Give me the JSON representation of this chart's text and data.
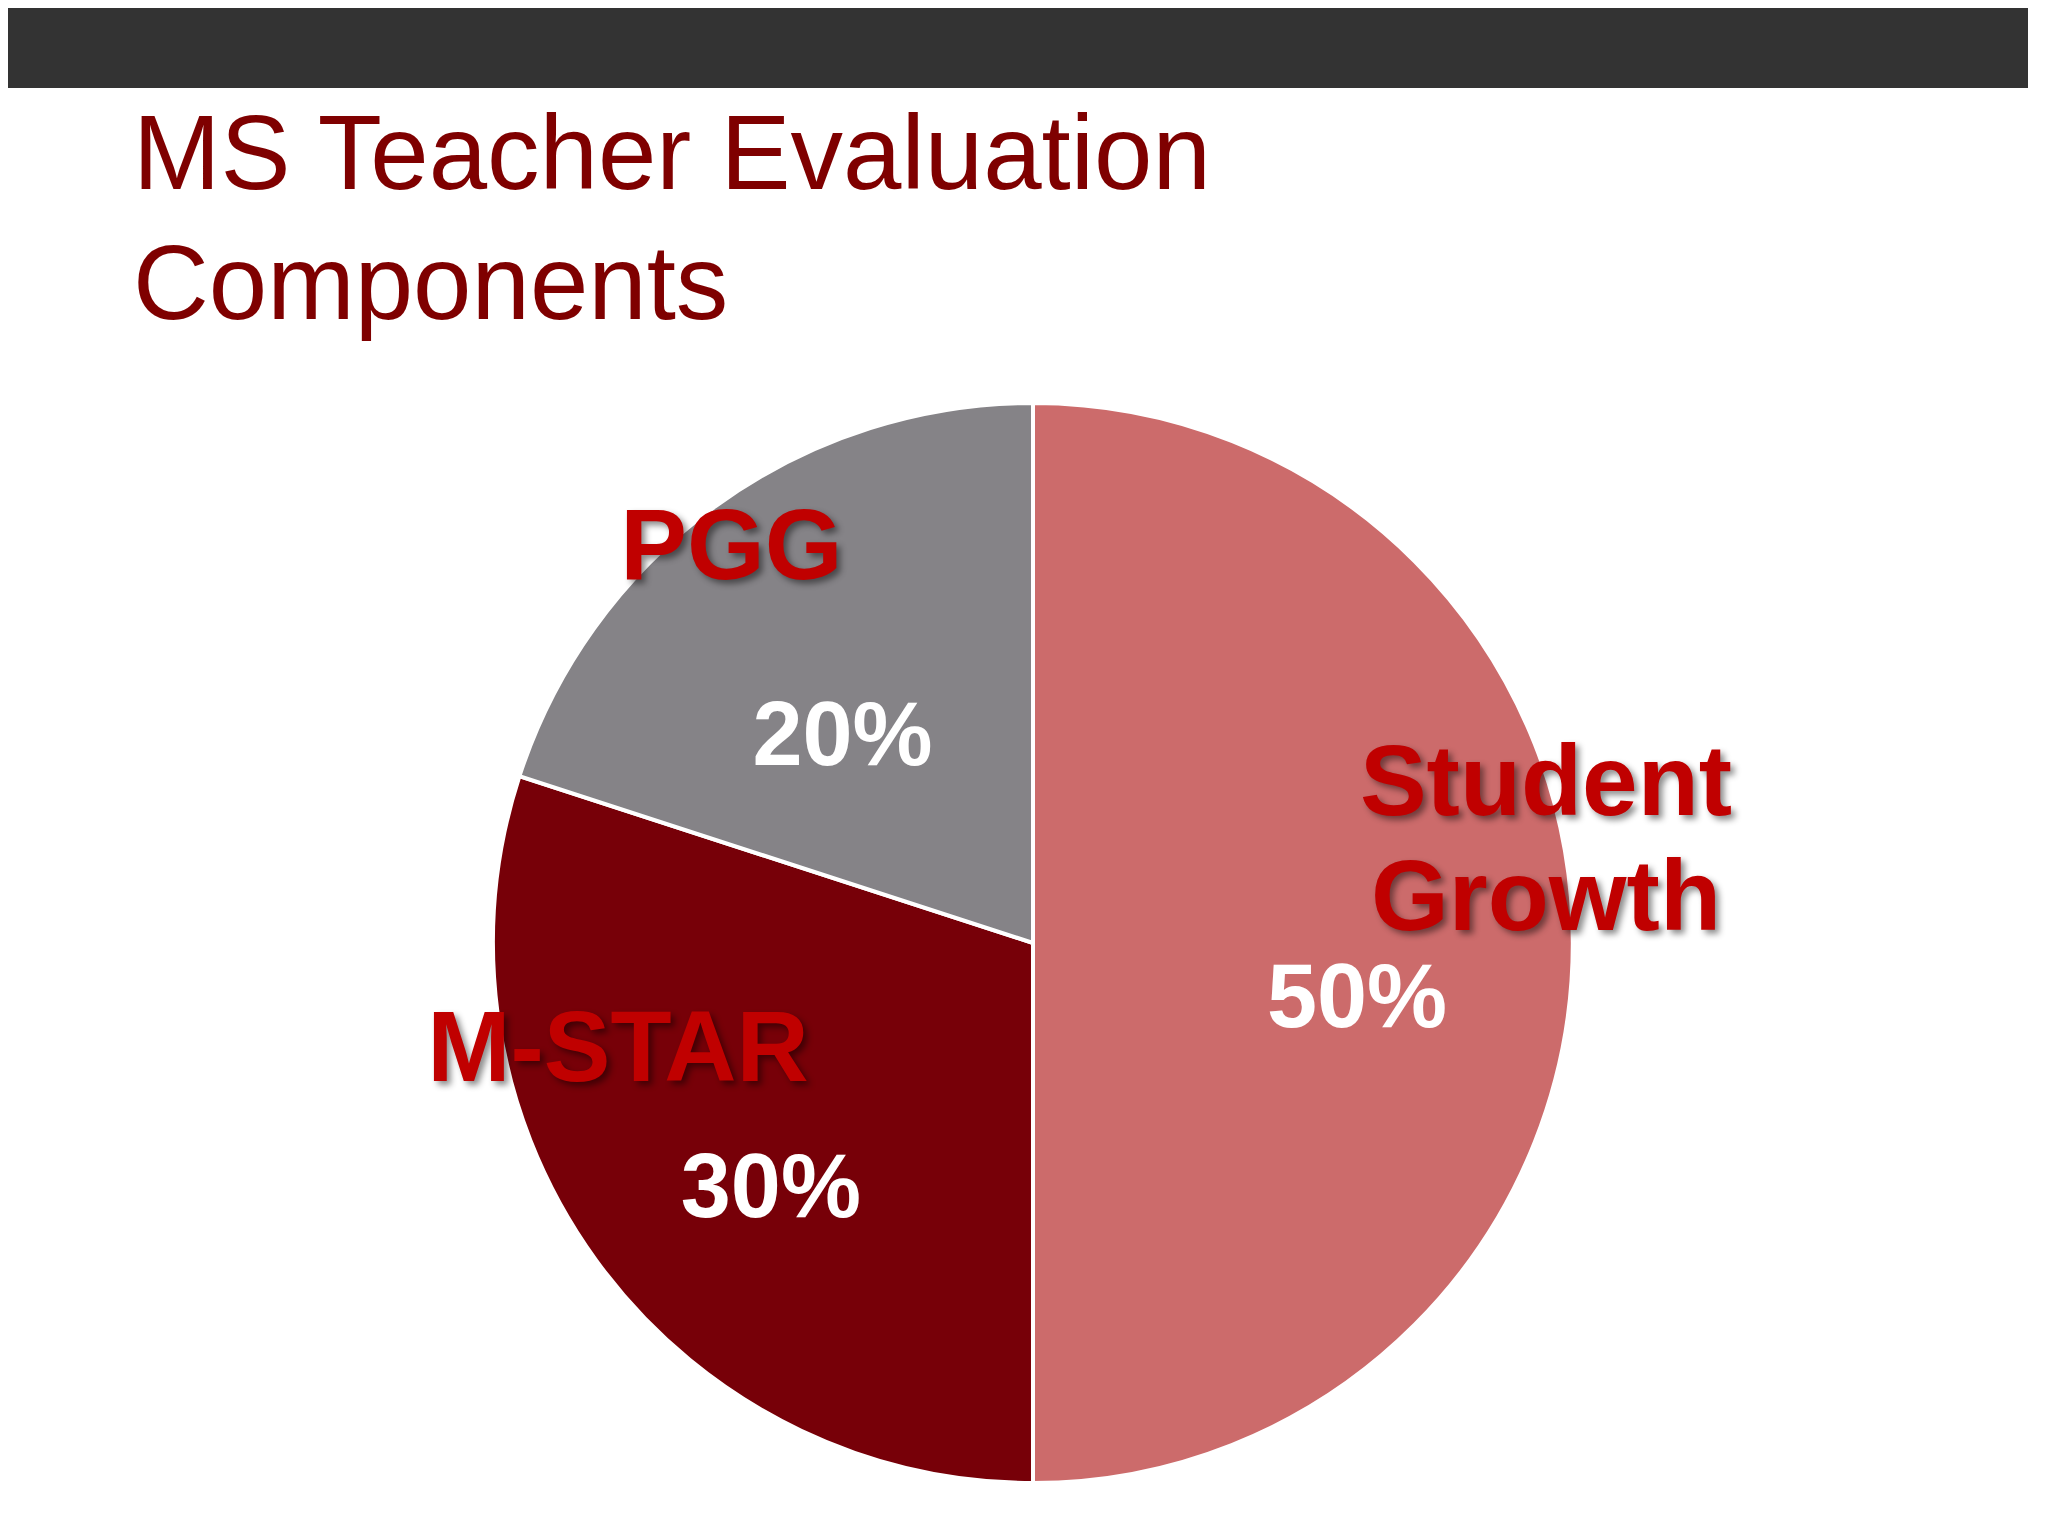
{
  "chart_data": {
    "type": "pie",
    "title": "MS Teacher Evaluation Components",
    "categories": [
      "Student Growth",
      "M-STAR",
      "PGG"
    ],
    "values": [
      50,
      30,
      20
    ],
    "colors": [
      "#cc6b6b",
      "#770008",
      "#858387"
    ],
    "value_labels": [
      "50%",
      "30%",
      "20%"
    ]
  }
}
